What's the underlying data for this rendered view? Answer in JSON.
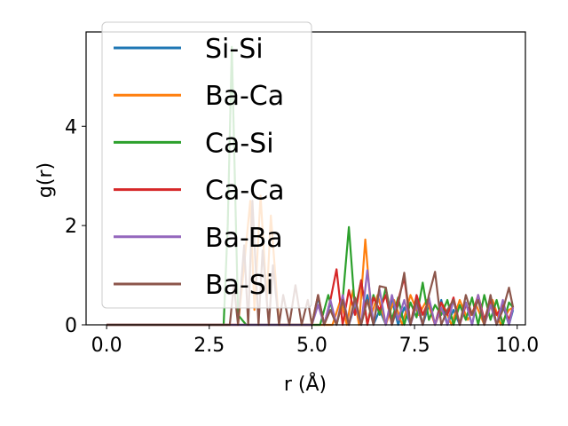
{
  "chart_data": {
    "type": "line",
    "title": "",
    "xlabel": "r (Å)",
    "ylabel": "g(r)",
    "xlim": [
      -0.5,
      10.2
    ],
    "ylim": [
      0,
      5.9
    ],
    "xticks": [
      0.0,
      2.5,
      5.0,
      7.5,
      10.0
    ],
    "xtick_labels": [
      "0.0",
      "2.5",
      "5.0",
      "7.5",
      "10.0"
    ],
    "yticks": [
      0,
      2,
      4
    ],
    "ytick_labels": [
      "0",
      "2",
      "4"
    ],
    "grid": false,
    "legend_position": "upper-left",
    "series": [
      {
        "name": "Si-Si",
        "color": "#1f77b4",
        "x": [
          0,
          5.0,
          5.15,
          5.3,
          5.45,
          5.6,
          5.75,
          5.9,
          6.05,
          6.2,
          6.35,
          6.5,
          6.65,
          6.8,
          6.95,
          7.1,
          7.25,
          7.4,
          7.55,
          7.7,
          7.85,
          8.0,
          8.15,
          8.3,
          8.45,
          8.6,
          8.75,
          8.9,
          9.05,
          9.2,
          9.35,
          9.5,
          9.65,
          9.8,
          9.9
        ],
        "y": [
          0,
          0,
          0.55,
          0,
          0.45,
          0,
          0.5,
          0,
          0.4,
          0,
          0.6,
          0,
          0.3,
          0,
          0.5,
          0,
          0.35,
          0,
          0.55,
          0,
          0.4,
          0,
          0.5,
          0,
          0.3,
          0,
          0.45,
          0,
          0.6,
          0,
          0.5,
          0,
          0.4,
          0,
          0.3
        ]
      },
      {
        "name": "Ba-Ca",
        "color": "#ff7f0e",
        "x": [
          0,
          3.2,
          3.35,
          3.5,
          3.6,
          3.75,
          3.9,
          4.0,
          4.2,
          5.5,
          5.7,
          5.85,
          6.0,
          6.15,
          6.3,
          6.45,
          6.6,
          6.8,
          7.0,
          7.2,
          7.4,
          7.6,
          7.8,
          8.0,
          8.2,
          8.4,
          8.6,
          8.8,
          9.0,
          9.2,
          9.4,
          9.6,
          9.8,
          9.9
        ],
        "y": [
          0,
          0,
          1.2,
          2.5,
          0.3,
          2.6,
          0.5,
          2.2,
          0,
          0,
          0.5,
          0,
          0.7,
          0,
          1.72,
          0.2,
          0.6,
          0,
          0.5,
          0,
          0.6,
          0.2,
          0.5,
          0,
          0.4,
          0,
          0.5,
          0.1,
          0.4,
          0,
          0.5,
          0,
          0.3,
          0.35
        ]
      },
      {
        "name": "Ca-Si",
        "color": "#2ca02c",
        "x": [
          0,
          2.85,
          2.95,
          3.05,
          3.2,
          3.4,
          5.2,
          5.4,
          5.6,
          5.75,
          5.9,
          6.05,
          6.2,
          6.35,
          6.5,
          6.65,
          6.8,
          6.95,
          7.1,
          7.25,
          7.4,
          7.55,
          7.7,
          7.85,
          8.0,
          8.15,
          8.3,
          8.45,
          8.6,
          8.75,
          8.9,
          9.05,
          9.2,
          9.35,
          9.5,
          9.65,
          9.8,
          9.9
        ],
        "y": [
          0,
          0,
          2.0,
          5.6,
          0.2,
          0,
          0,
          0.6,
          0,
          0.5,
          1.97,
          0.3,
          0.9,
          0,
          0.6,
          0.2,
          0.75,
          0.1,
          0.55,
          0,
          0.45,
          0.15,
          0.85,
          0.1,
          0.4,
          0.2,
          0.5,
          0,
          0.4,
          0.1,
          0.55,
          0,
          0.6,
          0.1,
          0.5,
          0,
          0.45,
          0.35
        ]
      },
      {
        "name": "Ca-Ca",
        "color": "#d62728",
        "x": [
          0,
          5.0,
          5.15,
          5.3,
          5.45,
          5.6,
          5.75,
          5.9,
          6.05,
          6.2,
          6.35,
          6.5,
          6.65,
          6.8,
          6.95,
          7.1,
          7.25,
          7.4,
          7.55,
          7.7,
          7.85,
          8.0,
          8.15,
          8.3,
          8.45,
          8.6,
          8.75,
          8.9,
          9.05,
          9.2,
          9.35,
          9.5,
          9.65,
          9.8,
          9.9
        ],
        "y": [
          0,
          0,
          0.6,
          0,
          0.5,
          1.12,
          0,
          0.7,
          0.2,
          0.9,
          0,
          0.55,
          0.3,
          0.6,
          0,
          0.5,
          0.95,
          0,
          0.6,
          0.2,
          0.5,
          0,
          0.45,
          0.2,
          0.55,
          0,
          0.4,
          0.2,
          0.6,
          0.1,
          0.5,
          0.2,
          0.4,
          0.1,
          0.35
        ]
      },
      {
        "name": "Ba-Ba",
        "color": "#9467bd",
        "x": [
          0,
          5.0,
          5.15,
          5.3,
          5.45,
          5.6,
          5.75,
          5.9,
          6.05,
          6.2,
          6.35,
          6.5,
          6.65,
          6.8,
          6.95,
          7.1,
          7.25,
          7.4,
          7.55,
          7.7,
          7.85,
          8.0,
          8.15,
          8.3,
          8.45,
          8.6,
          8.75,
          8.9,
          9.05,
          9.2,
          9.35,
          9.5,
          9.65,
          9.8,
          9.9
        ],
        "y": [
          0,
          0,
          0.4,
          0,
          0.5,
          0,
          0.6,
          0,
          0.45,
          0,
          1.1,
          0,
          0.7,
          0,
          0.6,
          0.1,
          0.5,
          0,
          0.4,
          0,
          0.55,
          0,
          0.35,
          0,
          0.5,
          0,
          0.45,
          0,
          0.6,
          0,
          0.4,
          0,
          0.5,
          0,
          0.35
        ]
      },
      {
        "name": "Ba-Si",
        "color": "#8c564b",
        "x": [
          0,
          3.0,
          3.1,
          3.2,
          3.35,
          3.45,
          3.55,
          3.7,
          3.8,
          3.95,
          4.05,
          4.2,
          4.3,
          4.45,
          4.6,
          4.75,
          4.9,
          5.0,
          5.15,
          5.3,
          5.45,
          5.6,
          5.75,
          5.9,
          6.05,
          6.2,
          6.35,
          6.5,
          6.65,
          6.8,
          6.95,
          7.1,
          7.25,
          7.4,
          7.55,
          7.7,
          7.85,
          8.0,
          8.15,
          8.3,
          8.45,
          8.6,
          8.75,
          8.9,
          9.05,
          9.2,
          9.35,
          9.5,
          9.65,
          9.8,
          9.9
        ],
        "y": [
          0,
          0,
          0.8,
          0,
          1.6,
          0,
          2.5,
          0,
          1.5,
          0,
          1.2,
          0,
          0.6,
          0,
          0.8,
          0,
          0.5,
          0,
          0.6,
          0,
          0.3,
          0,
          0.5,
          0,
          0.55,
          0,
          0.5,
          0,
          0.78,
          0.75,
          0,
          0.4,
          1.05,
          0,
          0.5,
          0,
          0.6,
          1.07,
          0,
          0.3,
          0.5,
          0,
          0.6,
          0.2,
          0.5,
          0,
          0.6,
          0,
          0.3,
          0.75,
          0.35
        ]
      }
    ]
  }
}
